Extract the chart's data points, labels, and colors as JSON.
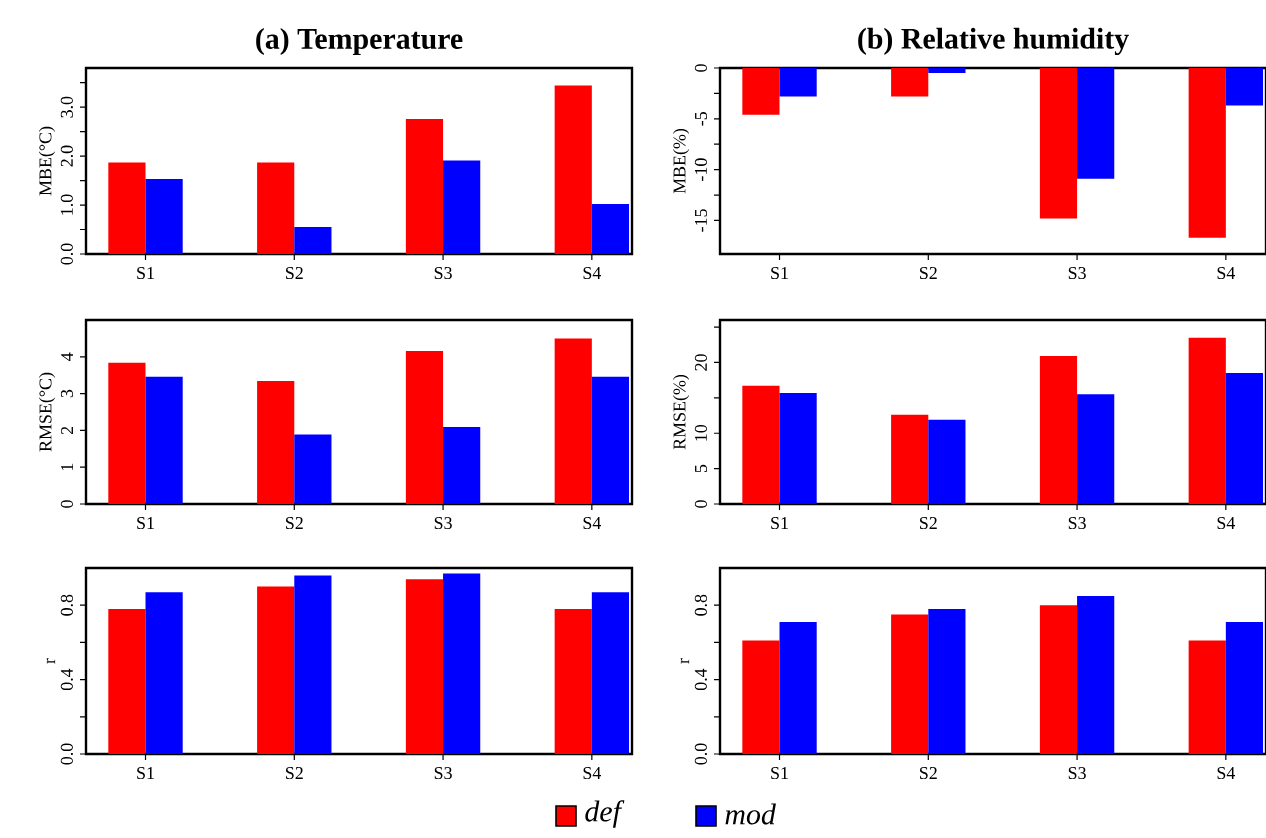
{
  "chart_data": [
    {
      "type": "bar",
      "title": "(a) Temperature",
      "ylabel": "MBE(°C)",
      "categories": [
        "S1",
        "S2",
        "S3",
        "S4"
      ],
      "ylim": [
        0,
        3.8
      ],
      "yticks": [
        {
          "value": 0,
          "label": "0.0"
        },
        {
          "value": 0.5,
          "label": null
        },
        {
          "value": 1,
          "label": "1.0"
        },
        {
          "value": 1.5,
          "label": null
        },
        {
          "value": 2,
          "label": "2.0"
        },
        {
          "value": 2.5,
          "label": null
        },
        {
          "value": 3,
          "label": "3.0"
        },
        {
          "value": 3.5,
          "label": null
        }
      ],
      "series": [
        {
          "color": "#ff0000",
          "values": [
            1.87,
            1.87,
            2.76,
            3.44
          ]
        },
        {
          "color": "#0000ff",
          "values": [
            1.53,
            0.55,
            1.91,
            1.02
          ]
        }
      ]
    },
    {
      "type": "bar",
      "title": "(b) Relative humidity",
      "ylabel": "MBE(%)",
      "categories": [
        "S1",
        "S2",
        "S3",
        "S4"
      ],
      "ylim": [
        -18.3,
        0
      ],
      "yticks": [
        -15,
        {
          "value": -12.5,
          "label": null
        },
        -10,
        {
          "value": -7.5,
          "label": null
        },
        -5,
        {
          "value": -2.5,
          "label": null
        },
        0
      ],
      "series": [
        {
          "color": "#ff0000",
          "values": [
            -4.6,
            -2.8,
            -14.8,
            -16.7
          ]
        },
        {
          "color": "#0000ff",
          "values": [
            -2.8,
            -0.5,
            -10.9,
            -3.7
          ]
        }
      ]
    },
    {
      "type": "bar",
      "ylabel": "RMSE(°C)",
      "categories": [
        "S1",
        "S2",
        "S3",
        "S4"
      ],
      "ylim": [
        0,
        5
      ],
      "yticks": [
        0,
        1,
        2,
        3,
        4
      ],
      "series": [
        {
          "color": "#ff0000",
          "values": [
            3.84,
            3.34,
            4.16,
            4.5
          ]
        },
        {
          "color": "#0000ff",
          "values": [
            3.46,
            1.89,
            2.09,
            3.46
          ]
        }
      ]
    },
    {
      "type": "bar",
      "ylabel": "RMSE(%)",
      "categories": [
        "S1",
        "S2",
        "S3",
        "S4"
      ],
      "ylim": [
        0,
        26
      ],
      "yticks": [
        0,
        5,
        10,
        {
          "value": 15,
          "label": null
        },
        20,
        {
          "value": 25,
          "label": null
        }
      ],
      "series": [
        {
          "color": "#ff0000",
          "values": [
            16.7,
            12.6,
            20.9,
            23.5
          ]
        },
        {
          "color": "#0000ff",
          "values": [
            15.7,
            11.9,
            15.5,
            18.5
          ]
        }
      ]
    },
    {
      "type": "bar",
      "ylabel": "r",
      "categories": [
        "S1",
        "S2",
        "S3",
        "S4"
      ],
      "ylim": [
        0,
        1
      ],
      "yticks": [
        {
          "value": 0,
          "label": "0.0"
        },
        {
          "value": 0.2,
          "label": null
        },
        0.4,
        {
          "value": 0.6,
          "label": null
        },
        0.8
      ],
      "series": [
        {
          "color": "#ff0000",
          "values": [
            0.78,
            0.9,
            0.94,
            0.78
          ]
        },
        {
          "color": "#0000ff",
          "values": [
            0.87,
            0.96,
            0.97,
            0.87
          ]
        }
      ]
    },
    {
      "type": "bar",
      "ylabel": "r",
      "categories": [
        "S1",
        "S2",
        "S3",
        "S4"
      ],
      "ylim": [
        0,
        1
      ],
      "legend": "bottom",
      "yticks": [
        {
          "value": 0,
          "label": "0.0"
        },
        {
          "value": 0.2,
          "label": null
        },
        0.4,
        {
          "value": 0.6,
          "label": null
        },
        0.8
      ],
      "series": [
        {
          "name": "def",
          "color": "#ff0000",
          "values": [
            0.61,
            0.75,
            0.8,
            0.61
          ]
        },
        {
          "name": "mod",
          "color": "#0000ff",
          "values": [
            0.71,
            0.78,
            0.85,
            0.71
          ]
        }
      ]
    }
  ]
}
